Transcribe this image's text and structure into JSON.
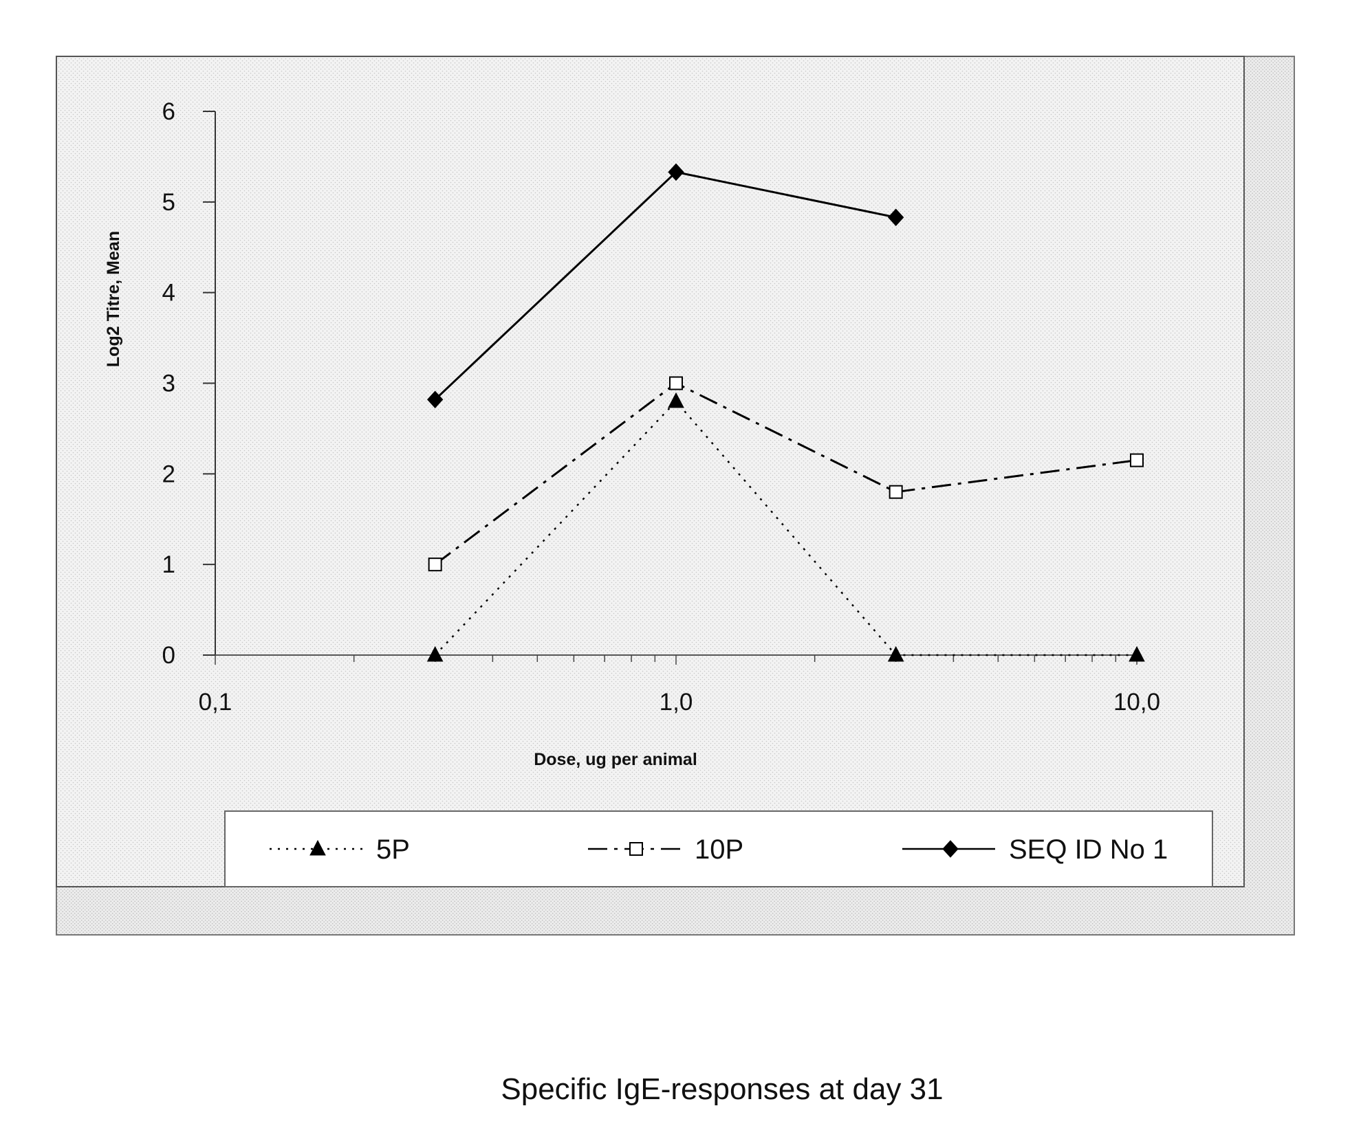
{
  "caption": "Specific IgE-responses at day 31",
  "chart_data": {
    "type": "line",
    "title": "",
    "xlabel": "Dose, ug per animal",
    "ylabel": "Log2 Titre, Mean",
    "x_scale": "log",
    "xlim": [
      0.1,
      10.0
    ],
    "ylim": [
      0,
      6
    ],
    "x_ticks": [
      {
        "value": 0.1,
        "label": "0,1"
      },
      {
        "value": 1.0,
        "label": "1,0"
      },
      {
        "value": 10.0,
        "label": "10,0"
      }
    ],
    "y_ticks": [
      0,
      1,
      2,
      3,
      4,
      5,
      6
    ],
    "grid": false,
    "legend_position": "bottom",
    "series": [
      {
        "name": "5P",
        "marker": "triangle",
        "line_style": "dotted",
        "x": [
          0.3,
          1.0,
          3.0,
          10.0
        ],
        "y": [
          0,
          2.8,
          0,
          0
        ]
      },
      {
        "name": "10P",
        "marker": "square",
        "line_style": "dash-dot",
        "x": [
          0.3,
          1.0,
          3.0,
          10.0
        ],
        "y": [
          1.0,
          3.0,
          1.8,
          2.15
        ]
      },
      {
        "name": "SEQ ID No 1",
        "marker": "diamond",
        "line_style": "solid",
        "x": [
          0.3,
          1.0,
          3.0
        ],
        "y": [
          2.82,
          5.33,
          4.83
        ]
      }
    ]
  }
}
